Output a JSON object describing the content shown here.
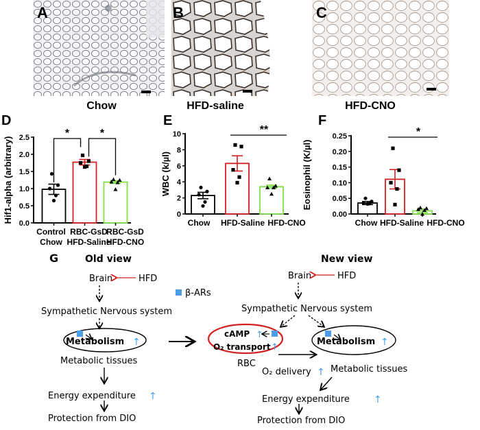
{
  "panels": {
    "A": {
      "letter": "A",
      "caption": "Chow"
    },
    "B": {
      "letter": "B",
      "caption": "HFD-saline"
    },
    "C": {
      "letter": "C",
      "caption": "HFD-CNO"
    },
    "D": {
      "letter": "D"
    },
    "E": {
      "letter": "E"
    },
    "F": {
      "letter": "F"
    },
    "G": {
      "letter": "G"
    }
  },
  "chart_data": [
    {
      "panel": "D",
      "type": "bar",
      "title": "",
      "xlabel": "",
      "ylabel": "Hif1-alpha (arbitrary)",
      "ylim": [
        0,
        2.5
      ],
      "yticks": [
        "0.0",
        "0.5",
        "1.0",
        "1.5",
        "2.0",
        "2.5"
      ],
      "categories": [
        [
          "Control",
          "Chow"
        ],
        [
          "RBC-GsD",
          "HFD-Saline"
        ],
        [
          "RBC-GsD",
          "HFD-CNO"
        ]
      ],
      "values": [
        0.98,
        1.77,
        1.19
      ],
      "errors": [
        0.15,
        0.08,
        0.04
      ],
      "colors": [
        "#000000",
        "#d42020",
        "#7fe04a"
      ],
      "points": [
        [
          1.43,
          1.1,
          1.0,
          0.8,
          0.65
        ],
        [
          1.97,
          1.8,
          1.75,
          1.65,
          1.63
        ],
        [
          1.27,
          1.25,
          1.2,
          1.18,
          0.98
        ]
      ],
      "markers": [
        "circle",
        "square",
        "triangle"
      ],
      "significance": [
        {
          "from": 0,
          "to": 1,
          "label": "*"
        },
        {
          "from": 1,
          "to": 2,
          "label": "*"
        }
      ],
      "grid": false
    },
    {
      "panel": "E",
      "type": "bar",
      "title": "",
      "xlabel": "",
      "ylabel": "WBC (k/µl)",
      "ylim": [
        0,
        10
      ],
      "yticks": [
        "0",
        "2",
        "4",
        "6",
        "8",
        "10"
      ],
      "categories": [
        "Chow",
        "HFD-Saline",
        "HFD-CNO"
      ],
      "values": [
        2.3,
        6.3,
        3.4
      ],
      "errors": [
        0.4,
        0.95,
        0.2
      ],
      "colors": [
        "#000000",
        "#d42020",
        "#7fe04a"
      ],
      "points": [
        [
          3.3,
          2.8,
          2.4,
          1.5,
          1.0
        ],
        [
          8.6,
          8.4,
          5.5,
          4.6,
          3.9
        ],
        [
          4.4,
          3.5,
          3.3,
          3.3,
          2.5
        ]
      ],
      "markers": [
        "circle",
        "square",
        "triangle"
      ],
      "significance": [
        {
          "from": 1,
          "to": 2,
          "label": "**"
        }
      ],
      "grid": false
    },
    {
      "panel": "F",
      "type": "bar",
      "title": "",
      "xlabel": "",
      "ylabel": "Eosinophil (K/µl)",
      "ylim": [
        0,
        0.25
      ],
      "yticks": [
        "0.00",
        "0.05",
        "0.10",
        "0.15",
        "0.20",
        "0.25"
      ],
      "categories": [
        "Chow",
        "HFD-Saline",
        "HFD-CNO"
      ],
      "values": [
        0.035,
        0.111,
        0.01
      ],
      "errors": [
        0.005,
        0.031,
        0.006
      ],
      "colors": [
        "#000000",
        "#d42020",
        "#7fe04a"
      ],
      "points": [
        [
          0.05,
          0.04,
          0.035,
          0.033,
          0.032
        ],
        [
          0.21,
          0.14,
          0.1,
          0.08,
          0.03
        ],
        [
          0.02,
          0.018,
          0.015,
          0.012,
          0.0
        ]
      ],
      "markers": [
        "circle",
        "square",
        "triangle"
      ],
      "significance": [
        {
          "from": 1,
          "to": 2,
          "label": "*"
        }
      ],
      "grid": false
    }
  ],
  "diagram": {
    "legend_label": "β-ARs",
    "old_view": {
      "title": "Old view",
      "brain": "Brain",
      "hfd": "HFD",
      "sns": "Sympathetic Nervous system",
      "metabolism": "Metabolism",
      "tissues": "Metabolic tissues",
      "energy": "Energy expenditure",
      "protection": "Protection from DIO"
    },
    "new_view": {
      "title": "New view",
      "brain": "Brain",
      "hfd": "HFD",
      "sns": "Sympathetic Nervous system",
      "camp": "cAMP",
      "o2_transport": "O₂ transport",
      "rbc": "RBC",
      "metabolism": "Metabolism",
      "o2_delivery": "O₂ delivery",
      "tissues": "Metabolic tissues",
      "energy": "Energy expenditure",
      "protection": "Protection from DIO"
    },
    "colors": {
      "receptor": "#4a9fe8",
      "up_arrow": "#4a9fe8",
      "hfd_arrow": "#d42020",
      "rbc_ellipse": "#d42020"
    }
  }
}
